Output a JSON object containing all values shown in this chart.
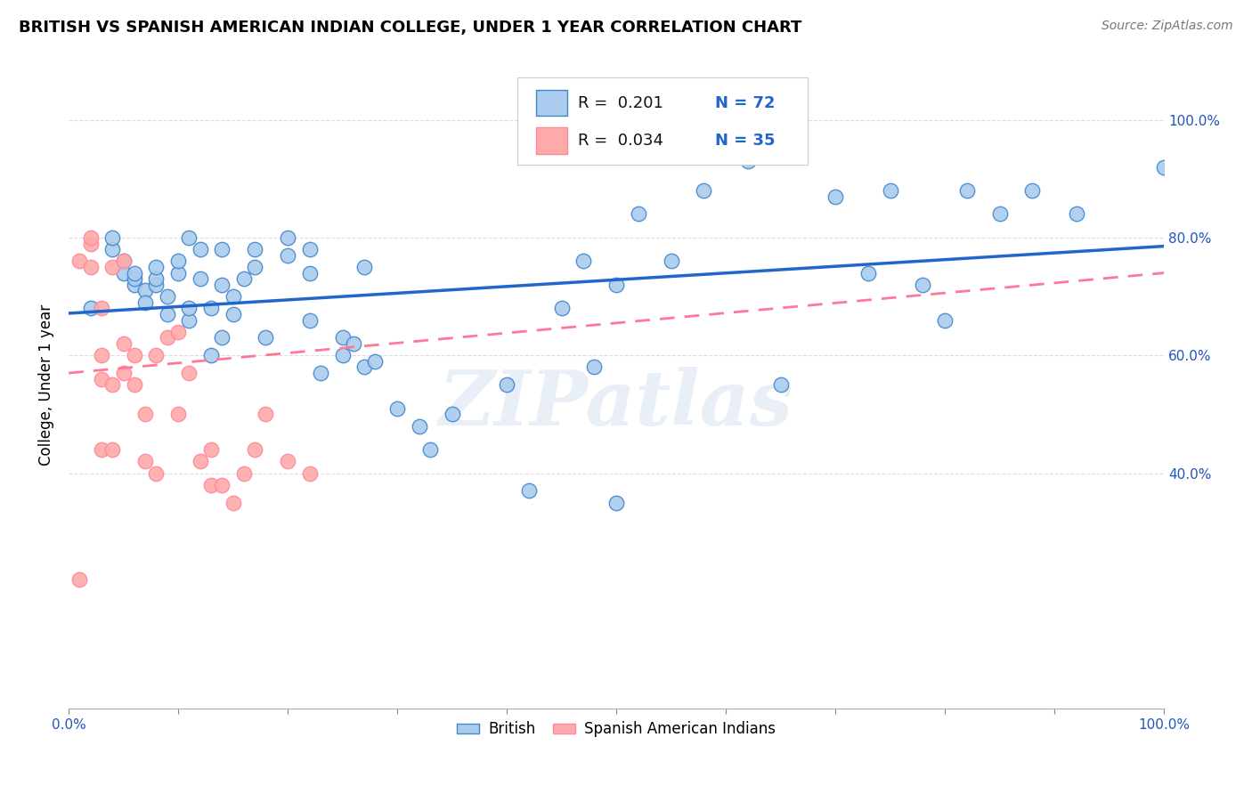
{
  "title": "BRITISH VS SPANISH AMERICAN INDIAN COLLEGE, UNDER 1 YEAR CORRELATION CHART",
  "source": "Source: ZipAtlas.com",
  "ylabel": "College, Under 1 year",
  "legend_r1": "R =  0.201",
  "legend_n1": "N = 72",
  "legend_r2": "R =  0.034",
  "legend_n2": "N = 35",
  "blue_fill": "#AACCEE",
  "blue_edge": "#4488CC",
  "pink_fill": "#FFAAAA",
  "pink_edge": "#FF8899",
  "line_blue": "#2266CC",
  "line_pink": "#FF7799",
  "watermark_text": "ZIPatlas",
  "british_x": [
    0.02,
    0.04,
    0.04,
    0.05,
    0.05,
    0.06,
    0.06,
    0.06,
    0.07,
    0.07,
    0.08,
    0.08,
    0.08,
    0.09,
    0.09,
    0.1,
    0.1,
    0.11,
    0.11,
    0.11,
    0.12,
    0.12,
    0.13,
    0.13,
    0.14,
    0.14,
    0.15,
    0.15,
    0.16,
    0.17,
    0.17,
    0.18,
    0.2,
    0.2,
    0.22,
    0.22,
    0.23,
    0.25,
    0.25,
    0.26,
    0.27,
    0.27,
    0.28,
    0.3,
    0.32,
    0.33,
    0.35,
    0.4,
    0.42,
    0.45,
    0.47,
    0.48,
    0.5,
    0.5,
    0.52,
    0.55,
    0.58,
    0.6,
    0.62,
    0.65,
    0.7,
    0.73,
    0.75,
    0.78,
    0.8,
    0.82,
    0.85,
    0.88,
    0.92,
    1.0,
    0.14,
    0.22
  ],
  "british_y": [
    0.68,
    0.78,
    0.8,
    0.76,
    0.74,
    0.72,
    0.73,
    0.74,
    0.71,
    0.69,
    0.72,
    0.73,
    0.75,
    0.7,
    0.67,
    0.74,
    0.76,
    0.66,
    0.68,
    0.8,
    0.73,
    0.78,
    0.6,
    0.68,
    0.72,
    0.63,
    0.67,
    0.7,
    0.73,
    0.75,
    0.78,
    0.63,
    0.8,
    0.77,
    0.74,
    0.66,
    0.57,
    0.6,
    0.63,
    0.62,
    0.58,
    0.75,
    0.59,
    0.51,
    0.48,
    0.44,
    0.5,
    0.55,
    0.37,
    0.68,
    0.76,
    0.58,
    0.35,
    0.72,
    0.84,
    0.76,
    0.88,
    0.95,
    0.93,
    0.55,
    0.87,
    0.74,
    0.88,
    0.72,
    0.66,
    0.88,
    0.84,
    0.88,
    0.84,
    0.92,
    0.78,
    0.78
  ],
  "spanish_x": [
    0.01,
    0.01,
    0.02,
    0.02,
    0.02,
    0.03,
    0.03,
    0.03,
    0.03,
    0.04,
    0.04,
    0.04,
    0.05,
    0.05,
    0.05,
    0.06,
    0.06,
    0.07,
    0.07,
    0.08,
    0.08,
    0.09,
    0.1,
    0.1,
    0.11,
    0.12,
    0.13,
    0.13,
    0.14,
    0.15,
    0.16,
    0.17,
    0.18,
    0.2,
    0.22
  ],
  "spanish_y": [
    0.22,
    0.76,
    0.75,
    0.79,
    0.8,
    0.44,
    0.56,
    0.6,
    0.68,
    0.44,
    0.55,
    0.75,
    0.57,
    0.62,
    0.76,
    0.55,
    0.6,
    0.42,
    0.5,
    0.4,
    0.6,
    0.63,
    0.5,
    0.64,
    0.57,
    0.42,
    0.38,
    0.44,
    0.38,
    0.35,
    0.4,
    0.44,
    0.5,
    0.42,
    0.4
  ],
  "xlim": [
    0.0,
    1.0
  ],
  "ylim": [
    0.0,
    1.1
  ],
  "ytick_positions": [
    0.4,
    0.6,
    0.8,
    1.0
  ],
  "ytick_labels": [
    "40.0%",
    "60.0%",
    "80.0%",
    "100.0%"
  ],
  "xtick_positions": [
    0.0,
    0.1,
    0.2,
    0.3,
    0.4,
    0.5,
    0.6,
    0.7,
    0.8,
    0.9,
    1.0
  ],
  "xtick_labels_show": [
    "0.0%",
    "",
    "",
    "",
    "",
    "",
    "",
    "",
    "",
    "",
    "100.0%"
  ],
  "axis_color": "#2255BB",
  "grid_color": "#DDDDDD",
  "title_fontsize": 13,
  "label_fontsize": 11,
  "scatter_size": 140
}
